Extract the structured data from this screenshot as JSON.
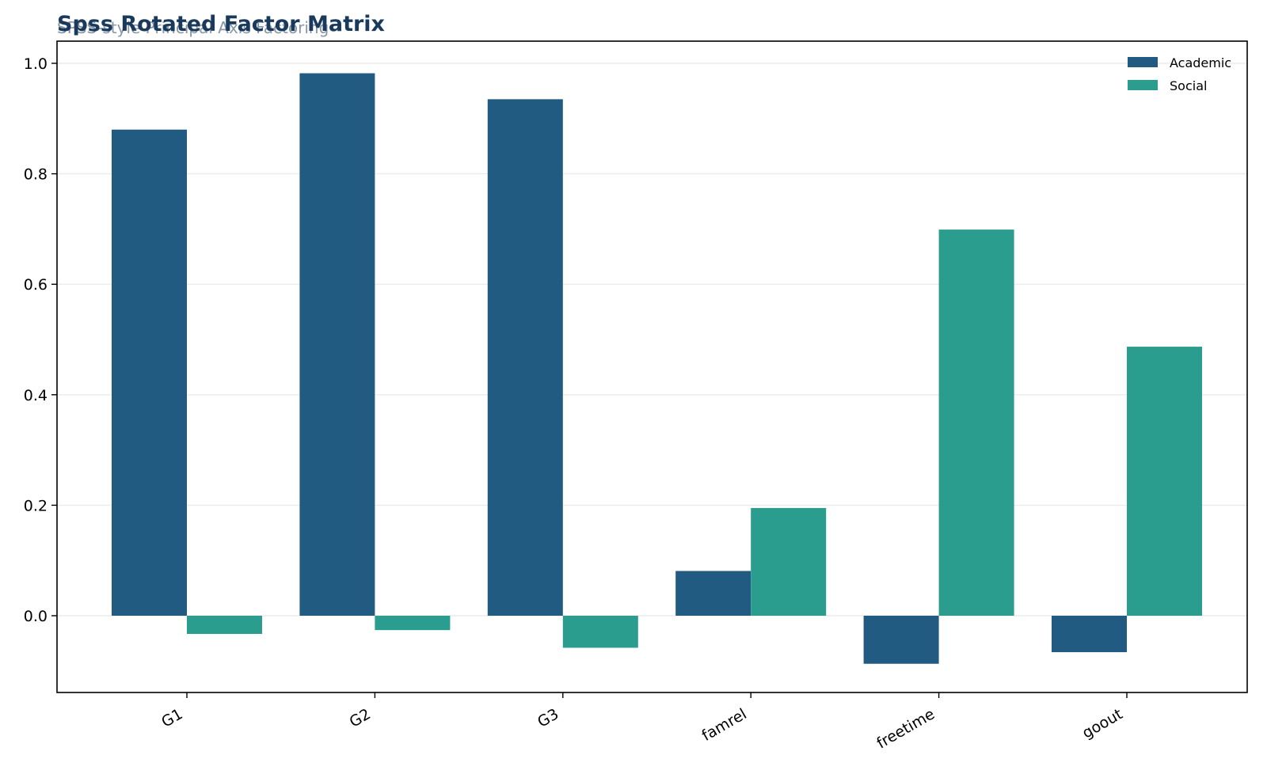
{
  "title": "Spss Rotated Factor Matrix",
  "subtitle": "SPSS-style Principal Axis Factoring",
  "colors": {
    "Academic": "#215b81",
    "Social": "#2a9d8e",
    "title": "#1a3a5c",
    "grid": "#ebebeb"
  },
  "chart_data": {
    "type": "bar",
    "categories": [
      "G1",
      "G2",
      "G3",
      "famrel",
      "freetime",
      "goout"
    ],
    "series": [
      {
        "name": "Academic",
        "values": [
          0.88,
          0.982,
          0.935,
          0.081,
          -0.087,
          -0.066
        ]
      },
      {
        "name": "Social",
        "values": [
          -0.033,
          -0.026,
          -0.058,
          0.195,
          0.699,
          0.487
        ]
      }
    ],
    "ylim": [
      -0.14,
      1.04
    ],
    "yticks": [
      "0.0",
      "0.2",
      "0.4",
      "0.6",
      "0.8",
      "1.0"
    ],
    "grid": true,
    "legend": "top-right"
  }
}
